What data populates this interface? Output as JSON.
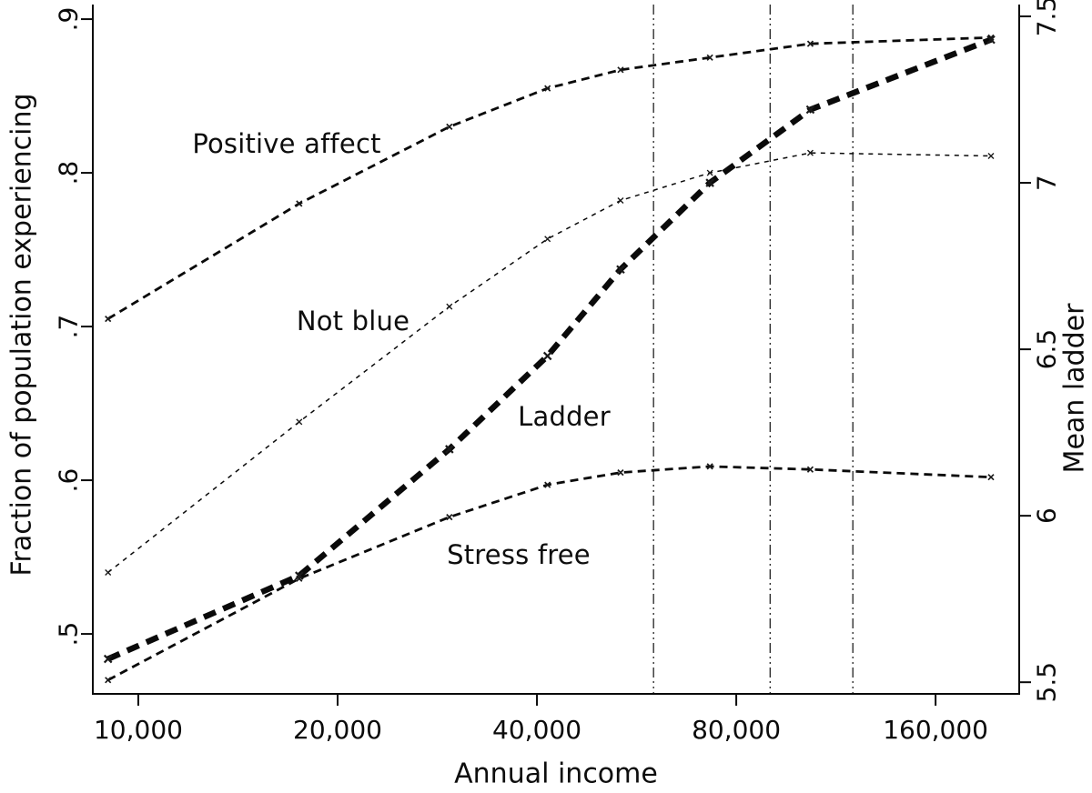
{
  "figure": {
    "background": "#ffffff",
    "ink_color": "#0a0a0a"
  },
  "chart_data": {
    "type": "line",
    "title": "",
    "xlabel": "Annual income",
    "ylabel_left": "Fraction of population experiencing",
    "ylabel_right": "Mean ladder",
    "x_scale": "log2",
    "grid": false,
    "legend": "inline-annotations",
    "xlim": [
      8537,
      214000
    ],
    "ylim_left": [
      0.461,
      0.9095
    ],
    "ylim_right": [
      5.465,
      7.5355
    ],
    "x": [
      9000,
      17500,
      29500,
      41500,
      53500,
      73000,
      103500,
      194000
    ],
    "x_ticks": [
      {
        "value": 10000,
        "label": "10,000"
      },
      {
        "value": 20000,
        "label": "20,000"
      },
      {
        "value": 40000,
        "label": "40,000"
      },
      {
        "value": 80000,
        "label": "80,000"
      },
      {
        "value": 160000,
        "label": "160,000"
      }
    ],
    "y_ticks_left": [
      {
        "value": 0.5,
        "label": ".5"
      },
      {
        "value": 0.6,
        "label": ".6"
      },
      {
        "value": 0.7,
        "label": ".7"
      },
      {
        "value": 0.8,
        "label": ".8"
      },
      {
        "value": 0.9,
        "label": ".9"
      }
    ],
    "y_ticks_right": [
      {
        "value": 5.5,
        "label": "5.5"
      },
      {
        "value": 6.0,
        "label": "6"
      },
      {
        "value": 6.5,
        "label": "6.5"
      },
      {
        "value": 7.0,
        "label": "7"
      },
      {
        "value": 7.5,
        "label": "7.5"
      }
    ],
    "reference_lines_x": [
      60000,
      90000,
      120000
    ],
    "series": [
      {
        "name": "Positive affect",
        "axis": "left",
        "style": "dashed-medium",
        "marker": "x",
        "values": [
          0.705,
          0.78,
          0.83,
          0.855,
          0.867,
          0.875,
          0.884,
          0.888
        ]
      },
      {
        "name": "Not blue",
        "axis": "left",
        "style": "dashed-fine",
        "marker": "x",
        "values": [
          0.54,
          0.638,
          0.713,
          0.757,
          0.782,
          0.8,
          0.813,
          0.811
        ]
      },
      {
        "name": "Stress free",
        "axis": "left",
        "style": "dashed-medium",
        "marker": "x",
        "values": [
          0.47,
          0.536,
          0.576,
          0.597,
          0.605,
          0.609,
          0.607,
          0.602
        ]
      },
      {
        "name": "Ladder",
        "axis": "right",
        "style": "dashed-thick",
        "marker": "x",
        "values": [
          5.57,
          5.82,
          6.2,
          6.48,
          6.74,
          7.0,
          7.22,
          7.43
        ]
      }
    ]
  }
}
